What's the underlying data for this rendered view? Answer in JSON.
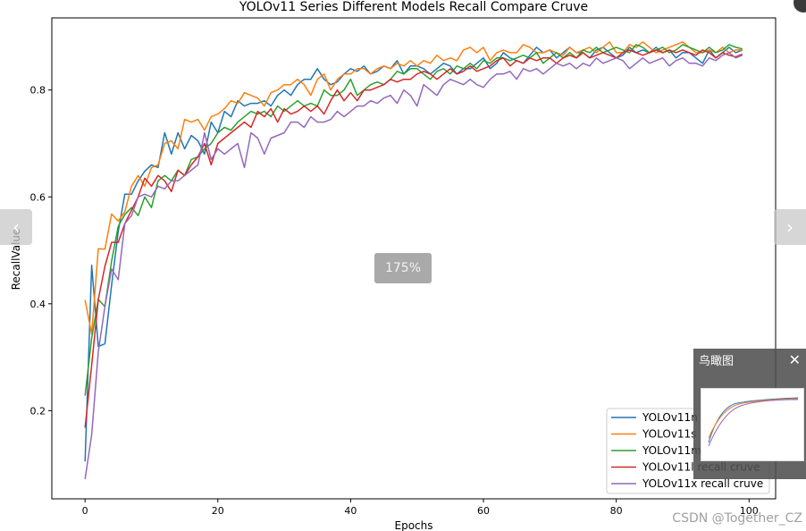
{
  "chart_data": {
    "type": "line",
    "title": "YOLOv11 Series Different Models Recall Compare Cruve",
    "xlabel": "Epochs",
    "ylabel": "RecallValue",
    "xlim": [
      -5,
      104
    ],
    "ylim": [
      0.035,
      0.935
    ],
    "xticks": [
      0,
      20,
      40,
      60,
      80,
      100
    ],
    "yticks": [
      0.2,
      0.4,
      0.6,
      0.8
    ],
    "grid": false,
    "legend_position": "lower-right",
    "x": [
      0,
      1,
      2,
      3,
      4,
      5,
      6,
      7,
      8,
      9,
      10,
      11,
      12,
      13,
      14,
      15,
      16,
      17,
      18,
      19,
      20,
      21,
      22,
      23,
      24,
      25,
      26,
      27,
      28,
      29,
      30,
      31,
      32,
      33,
      34,
      35,
      36,
      37,
      38,
      39,
      40,
      41,
      42,
      43,
      44,
      45,
      46,
      47,
      48,
      49,
      50,
      51,
      52,
      53,
      54,
      55,
      56,
      57,
      58,
      59,
      60,
      61,
      62,
      63,
      64,
      65,
      66,
      67,
      68,
      69,
      70,
      71,
      72,
      73,
      74,
      75,
      76,
      77,
      78,
      79,
      80,
      81,
      82,
      83,
      84,
      85,
      86,
      87,
      88,
      89,
      90,
      91,
      92,
      93,
      94,
      95,
      96,
      97,
      98,
      99
    ],
    "series": [
      {
        "name": "YOLOv11n recall cruve",
        "color": "#1f77b4",
        "values": [
          0.105,
          0.472,
          0.32,
          0.325,
          0.435,
          0.535,
          0.605,
          0.605,
          0.63,
          0.648,
          0.66,
          0.655,
          0.72,
          0.68,
          0.72,
          0.69,
          0.715,
          0.705,
          0.68,
          0.74,
          0.72,
          0.76,
          0.75,
          0.78,
          0.77,
          0.775,
          0.775,
          0.78,
          0.77,
          0.79,
          0.8,
          0.79,
          0.81,
          0.82,
          0.82,
          0.84,
          0.82,
          0.81,
          0.815,
          0.83,
          0.84,
          0.835,
          0.845,
          0.83,
          0.835,
          0.845,
          0.84,
          0.855,
          0.83,
          0.845,
          0.845,
          0.84,
          0.83,
          0.84,
          0.85,
          0.845,
          0.83,
          0.84,
          0.84,
          0.85,
          0.86,
          0.84,
          0.85,
          0.87,
          0.86,
          0.855,
          0.85,
          0.865,
          0.88,
          0.87,
          0.875,
          0.86,
          0.87,
          0.88,
          0.87,
          0.87,
          0.86,
          0.875,
          0.88,
          0.87,
          0.86,
          0.865,
          0.88,
          0.87,
          0.875,
          0.87,
          0.88,
          0.87,
          0.875,
          0.86,
          0.87,
          0.87,
          0.86,
          0.85,
          0.875,
          0.86,
          0.87,
          0.88,
          0.87,
          0.875
        ]
      },
      {
        "name": "YOLOv11s recall cruve",
        "color": "#ff7f0e",
        "values": [
          0.407,
          0.343,
          0.503,
          0.502,
          0.568,
          0.555,
          0.572,
          0.62,
          0.64,
          0.62,
          0.655,
          0.66,
          0.7,
          0.705,
          0.69,
          0.745,
          0.74,
          0.745,
          0.725,
          0.75,
          0.755,
          0.765,
          0.78,
          0.775,
          0.795,
          0.79,
          0.785,
          0.77,
          0.795,
          0.8,
          0.81,
          0.81,
          0.82,
          0.81,
          0.79,
          0.82,
          0.83,
          0.8,
          0.82,
          0.83,
          0.83,
          0.84,
          0.84,
          0.83,
          0.84,
          0.845,
          0.84,
          0.85,
          0.845,
          0.855,
          0.845,
          0.855,
          0.85,
          0.865,
          0.855,
          0.86,
          0.855,
          0.875,
          0.88,
          0.87,
          0.88,
          0.855,
          0.87,
          0.875,
          0.87,
          0.87,
          0.885,
          0.88,
          0.87,
          0.87,
          0.875,
          0.87,
          0.865,
          0.88,
          0.87,
          0.875,
          0.88,
          0.87,
          0.88,
          0.89,
          0.87,
          0.87,
          0.885,
          0.88,
          0.89,
          0.88,
          0.87,
          0.875,
          0.88,
          0.885,
          0.89,
          0.88,
          0.87,
          0.87,
          0.875,
          0.87,
          0.88,
          0.87,
          0.875,
          0.875
        ]
      },
      {
        "name": "YOLOv11m recall cruve",
        "color": "#2ca02c",
        "values": [
          0.228,
          0.336,
          0.408,
          0.395,
          0.48,
          0.545,
          0.567,
          0.58,
          0.565,
          0.6,
          0.58,
          0.63,
          0.64,
          0.63,
          0.65,
          0.64,
          0.67,
          0.675,
          0.69,
          0.7,
          0.72,
          0.73,
          0.725,
          0.74,
          0.75,
          0.76,
          0.755,
          0.76,
          0.75,
          0.77,
          0.76,
          0.77,
          0.78,
          0.77,
          0.775,
          0.77,
          0.8,
          0.79,
          0.79,
          0.8,
          0.82,
          0.79,
          0.8,
          0.81,
          0.815,
          0.81,
          0.82,
          0.835,
          0.83,
          0.84,
          0.84,
          0.83,
          0.82,
          0.835,
          0.84,
          0.83,
          0.845,
          0.84,
          0.85,
          0.84,
          0.855,
          0.85,
          0.86,
          0.86,
          0.855,
          0.86,
          0.865,
          0.86,
          0.87,
          0.85,
          0.86,
          0.87,
          0.86,
          0.87,
          0.86,
          0.875,
          0.87,
          0.88,
          0.87,
          0.875,
          0.88,
          0.875,
          0.87,
          0.885,
          0.88,
          0.87,
          0.875,
          0.88,
          0.87,
          0.875,
          0.885,
          0.88,
          0.875,
          0.87,
          0.88,
          0.87,
          0.875,
          0.885,
          0.88,
          0.877
        ]
      },
      {
        "name": "YOLOv11l recall cruve",
        "color": "#d62728",
        "values": [
          0.168,
          0.285,
          0.408,
          0.47,
          0.515,
          0.515,
          0.55,
          0.575,
          0.6,
          0.635,
          0.62,
          0.64,
          0.63,
          0.61,
          0.65,
          0.64,
          0.66,
          0.675,
          0.7,
          0.66,
          0.7,
          0.71,
          0.72,
          0.73,
          0.74,
          0.73,
          0.76,
          0.75,
          0.765,
          0.74,
          0.765,
          0.755,
          0.76,
          0.77,
          0.76,
          0.77,
          0.755,
          0.78,
          0.8,
          0.78,
          0.795,
          0.78,
          0.8,
          0.8,
          0.805,
          0.81,
          0.82,
          0.815,
          0.82,
          0.82,
          0.83,
          0.835,
          0.83,
          0.82,
          0.83,
          0.84,
          0.83,
          0.835,
          0.845,
          0.835,
          0.84,
          0.845,
          0.855,
          0.86,
          0.845,
          0.855,
          0.85,
          0.86,
          0.855,
          0.86,
          0.86,
          0.85,
          0.86,
          0.865,
          0.86,
          0.87,
          0.86,
          0.865,
          0.87,
          0.865,
          0.86,
          0.87,
          0.875,
          0.87,
          0.865,
          0.87,
          0.875,
          0.87,
          0.875,
          0.87,
          0.875,
          0.87,
          0.865,
          0.875,
          0.87,
          0.86,
          0.87,
          0.865,
          0.862,
          0.867
        ]
      },
      {
        "name": "YOLOv11x recall cruve",
        "color": "#9467bd",
        "values": [
          0.072,
          0.155,
          0.31,
          0.395,
          0.465,
          0.445,
          0.55,
          0.565,
          0.6,
          0.605,
          0.6,
          0.62,
          0.615,
          0.63,
          0.63,
          0.64,
          0.65,
          0.66,
          0.72,
          0.67,
          0.69,
          0.68,
          0.69,
          0.7,
          0.655,
          0.72,
          0.71,
          0.68,
          0.71,
          0.715,
          0.72,
          0.74,
          0.74,
          0.73,
          0.75,
          0.74,
          0.74,
          0.745,
          0.76,
          0.75,
          0.76,
          0.77,
          0.77,
          0.78,
          0.775,
          0.785,
          0.79,
          0.775,
          0.8,
          0.79,
          0.77,
          0.81,
          0.8,
          0.79,
          0.81,
          0.82,
          0.815,
          0.81,
          0.82,
          0.81,
          0.805,
          0.82,
          0.83,
          0.83,
          0.835,
          0.82,
          0.84,
          0.835,
          0.84,
          0.83,
          0.84,
          0.85,
          0.845,
          0.85,
          0.84,
          0.85,
          0.845,
          0.86,
          0.85,
          0.855,
          0.86,
          0.855,
          0.84,
          0.85,
          0.86,
          0.85,
          0.855,
          0.86,
          0.845,
          0.855,
          0.86,
          0.85,
          0.85,
          0.845,
          0.86,
          0.855,
          0.865,
          0.87,
          0.86,
          0.865
        ]
      }
    ]
  },
  "viewer": {
    "zoom_level": "175%",
    "prev_arrow": "‹",
    "next_arrow": "›",
    "overview_title": "鸟瞰图",
    "overview_close": "✕",
    "watermark": "CSDN @Together_CZ"
  }
}
